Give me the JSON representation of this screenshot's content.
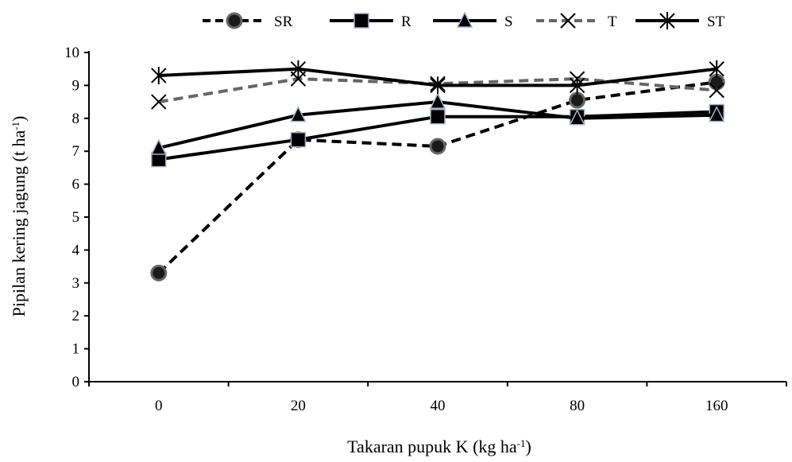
{
  "chart_data": {
    "type": "line",
    "categories": [
      "0",
      "20",
      "40",
      "80",
      "160"
    ],
    "ylim": [
      0,
      10
    ],
    "yticks": [
      "0",
      "1",
      "2",
      "3",
      "4",
      "5",
      "6",
      "7",
      "8",
      "9",
      "10"
    ],
    "ylabel": {
      "main": "Pipilan kering jagung (t ha",
      "sup": "-1",
      "tail": ")"
    },
    "xlabel": {
      "main": "Takaran pupuk K (kg ha",
      "sup": "-1",
      "tail": ")"
    },
    "grid": false,
    "legend_position": "top",
    "series": [
      {
        "name": "SR",
        "values": [
          3.3,
          7.35,
          7.15,
          8.55,
          9.1
        ],
        "line": "dashed",
        "line_color": "#000000",
        "marker": "circle",
        "marker_fill": "#1a1a1a",
        "marker_stroke": "#666666"
      },
      {
        "name": "R",
        "values": [
          6.75,
          7.35,
          8.05,
          8.05,
          8.2
        ],
        "line": "solid",
        "line_color": "#000000",
        "marker": "square",
        "marker_fill": "#000000",
        "marker_stroke": "#aab0c8"
      },
      {
        "name": "S",
        "values": [
          7.1,
          8.1,
          8.5,
          8.0,
          8.1
        ],
        "line": "solid",
        "line_color": "#000000",
        "marker": "triangle",
        "marker_fill": "#000000",
        "marker_stroke": "#aab0c8"
      },
      {
        "name": "T",
        "values": [
          8.5,
          9.2,
          9.05,
          9.2,
          8.85
        ],
        "line": "dashed",
        "line_color": "#666666",
        "marker": "x",
        "marker_fill": "none",
        "marker_stroke": "#000000"
      },
      {
        "name": "ST",
        "values": [
          9.3,
          9.5,
          9.0,
          9.0,
          9.5
        ],
        "line": "solid",
        "line_color": "#000000",
        "marker": "asterisk",
        "marker_fill": "none",
        "marker_stroke": "#000000"
      }
    ]
  }
}
